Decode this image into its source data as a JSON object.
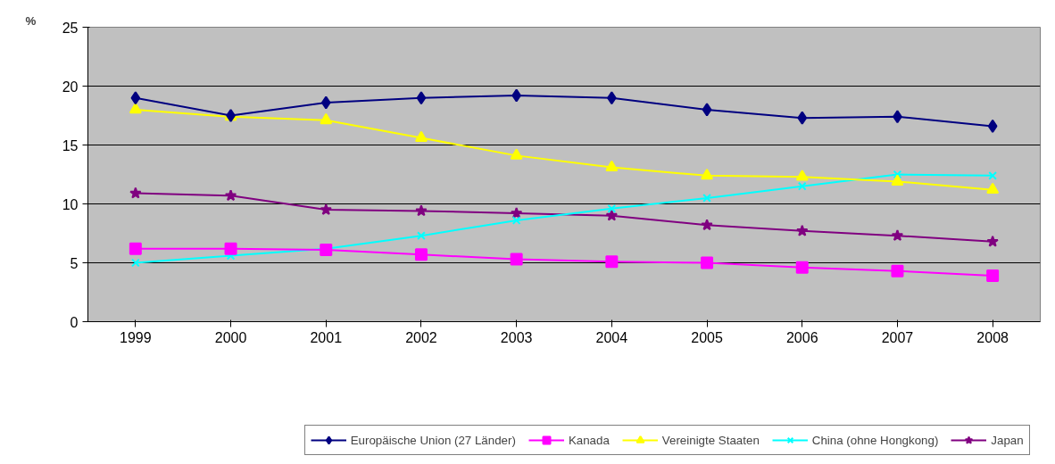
{
  "chart_data": {
    "type": "line",
    "ylabel": "%",
    "categories": [
      "1999",
      "2000",
      "2001",
      "2002",
      "2003",
      "2004",
      "2005",
      "2006",
      "2007",
      "2008"
    ],
    "ylim": [
      0,
      25
    ],
    "yticks": [
      0,
      5,
      10,
      15,
      20,
      25
    ],
    "grid": "y",
    "legend": "bottom",
    "series": [
      {
        "name": "Europäische Union (27 Länder)",
        "color": "#000080",
        "marker": "diamond",
        "values": [
          19.0,
          17.5,
          18.6,
          19.0,
          19.2,
          19.0,
          18.0,
          17.3,
          17.4,
          16.6
        ]
      },
      {
        "name": "Kanada",
        "color": "#ff00ff",
        "marker": "square",
        "values": [
          6.2,
          6.2,
          6.1,
          5.7,
          5.3,
          5.1,
          5.0,
          4.6,
          4.3,
          3.9
        ]
      },
      {
        "name": "Vereinigte Staaten",
        "color": "#ffff00",
        "marker": "triangle",
        "values": [
          18.0,
          17.4,
          17.1,
          15.6,
          14.1,
          13.1,
          12.4,
          12.3,
          11.9,
          11.2
        ]
      },
      {
        "name": "China (ohne Hongkong)",
        "color": "#00ffff",
        "marker": "cross",
        "values": [
          5.0,
          5.6,
          6.2,
          7.3,
          8.6,
          9.6,
          10.5,
          11.5,
          12.5,
          12.4
        ]
      },
      {
        "name": "Japan",
        "color": "#800080",
        "marker": "star",
        "values": [
          10.9,
          10.7,
          9.5,
          9.4,
          9.2,
          9.0,
          8.2,
          7.7,
          7.3,
          6.8
        ]
      }
    ]
  }
}
